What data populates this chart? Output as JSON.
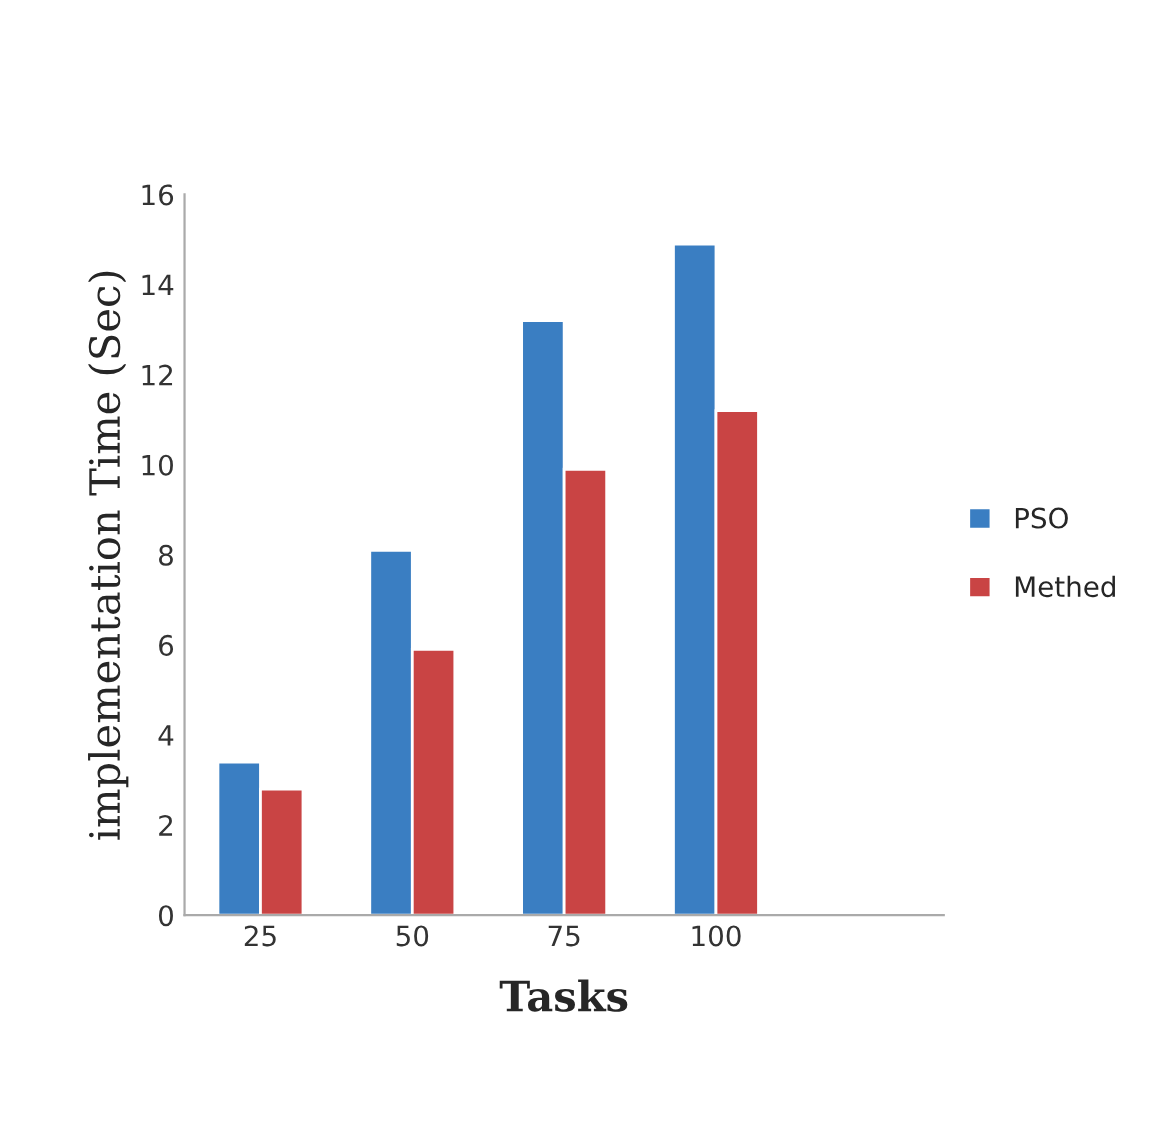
{
  "chart_data": {
    "type": "bar",
    "xlabel": "Tasks",
    "ylabel": "implementation Time (Sec)",
    "categories": [
      "25",
      "50",
      "75",
      "100",
      null
    ],
    "series": [
      {
        "name": "PSO",
        "color": "#3a7ec2",
        "values": [
          3.4,
          8.1,
          13.2,
          14.9,
          null
        ]
      },
      {
        "name": "Methed",
        "color": "#c94444",
        "values": [
          2.8,
          5.9,
          9.9,
          11.2,
          null
        ]
      }
    ],
    "ylim": [
      0,
      16
    ],
    "yticks": [
      0,
      2,
      4,
      6,
      8,
      10,
      12,
      14,
      16
    ],
    "grid": false,
    "legend": "right"
  }
}
